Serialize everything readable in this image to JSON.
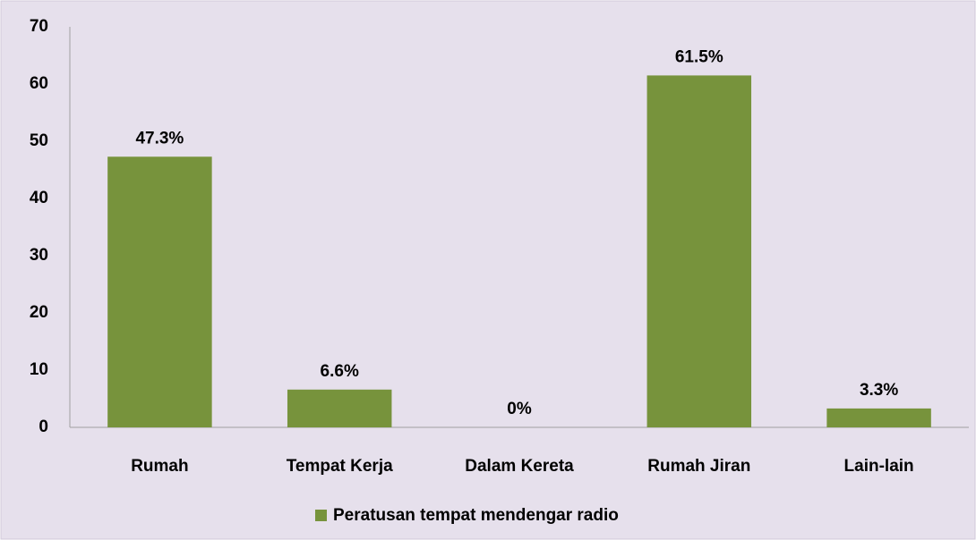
{
  "chart_data": {
    "type": "bar",
    "categories": [
      "Rumah",
      "Tempat Kerja",
      "Dalam Kereta",
      "Rumah Jiran",
      "Lain-lain"
    ],
    "series": [
      {
        "name": "Peratusan tempat mendengar radio",
        "color": "#77933c",
        "values": [
          47.3,
          6.6,
          0,
          61.5,
          3.3
        ],
        "value_labels": [
          "47.3%",
          "6.6%",
          "0%",
          "61.5%",
          "3.3%"
        ]
      }
    ],
    "ylim": [
      0,
      70
    ],
    "yticks": [
      0,
      10,
      20,
      30,
      40,
      50,
      60,
      70
    ],
    "grid": false,
    "legend": "bottom"
  }
}
